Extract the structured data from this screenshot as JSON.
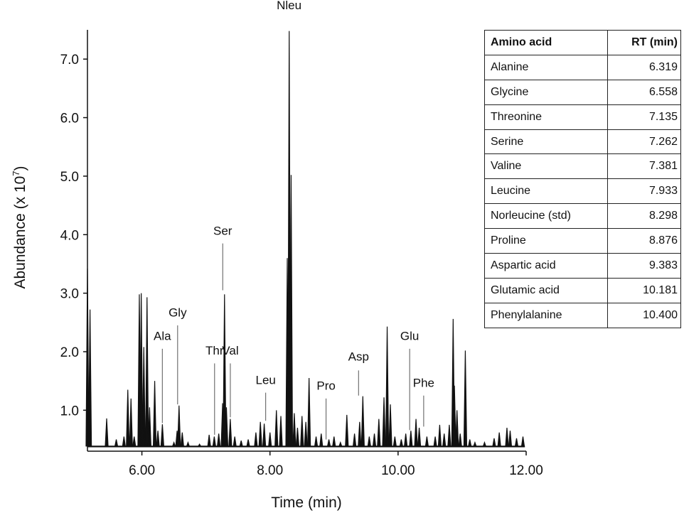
{
  "chart_data": {
    "type": "line",
    "xlabel": "Time  (min)",
    "ylabel": "Abundance  (x 10",
    "ylabel_sup": "7",
    "ylabel_close": ")",
    "xlim": [
      5.15,
      12.0
    ],
    "ylim": [
      0.3,
      7.5
    ],
    "xticks": [
      "6.00",
      "8.00",
      "10.00",
      "12.00"
    ],
    "yticks": [
      "1.0",
      "2.0",
      "3.0",
      "4.0",
      "5.0",
      "6.0",
      "7.0"
    ],
    "baseline": 0.38,
    "peaks": [
      [
        5.15,
        3.42
      ],
      [
        5.19,
        2.72
      ],
      [
        5.45,
        0.86
      ],
      [
        5.6,
        0.5
      ],
      [
        5.72,
        0.55
      ],
      [
        5.78,
        1.35
      ],
      [
        5.83,
        1.2
      ],
      [
        5.88,
        0.55
      ],
      [
        5.96,
        2.98
      ],
      [
        5.99,
        3.0
      ],
      [
        6.03,
        2.08
      ],
      [
        6.08,
        2.93
      ],
      [
        6.12,
        1.05
      ],
      [
        6.2,
        1.5
      ],
      [
        6.25,
        0.65
      ],
      [
        6.32,
        0.76
      ],
      [
        6.5,
        0.45
      ],
      [
        6.55,
        0.65
      ],
      [
        6.58,
        1.08
      ],
      [
        6.63,
        0.62
      ],
      [
        6.72,
        0.45
      ],
      [
        6.9,
        0.42
      ],
      [
        7.05,
        0.58
      ],
      [
        7.13,
        0.55
      ],
      [
        7.2,
        0.6
      ],
      [
        7.26,
        1.12
      ],
      [
        7.29,
        2.98
      ],
      [
        7.32,
        1.05
      ],
      [
        7.38,
        0.85
      ],
      [
        7.45,
        0.55
      ],
      [
        7.55,
        0.48
      ],
      [
        7.66,
        0.5
      ],
      [
        7.78,
        0.62
      ],
      [
        7.85,
        0.8
      ],
      [
        7.91,
        0.77
      ],
      [
        8.0,
        0.62
      ],
      [
        8.1,
        1.0
      ],
      [
        8.17,
        0.9
      ],
      [
        8.27,
        3.6
      ],
      [
        8.3,
        7.48
      ],
      [
        8.33,
        5.02
      ],
      [
        8.38,
        0.95
      ],
      [
        8.43,
        0.7
      ],
      [
        8.5,
        0.9
      ],
      [
        8.56,
        0.8
      ],
      [
        8.61,
        1.55
      ],
      [
        8.72,
        0.55
      ],
      [
        8.8,
        0.6
      ],
      [
        8.92,
        0.5
      ],
      [
        9.0,
        0.55
      ],
      [
        9.1,
        0.45
      ],
      [
        9.2,
        0.92
      ],
      [
        9.32,
        0.6
      ],
      [
        9.4,
        0.8
      ],
      [
        9.45,
        1.24
      ],
      [
        9.55,
        0.55
      ],
      [
        9.63,
        0.6
      ],
      [
        9.7,
        0.85
      ],
      [
        9.78,
        1.22
      ],
      [
        9.83,
        2.43
      ],
      [
        9.88,
        1.1
      ],
      [
        9.95,
        0.55
      ],
      [
        10.05,
        0.5
      ],
      [
        10.12,
        0.6
      ],
      [
        10.2,
        0.65
      ],
      [
        10.28,
        0.85
      ],
      [
        10.33,
        0.7
      ],
      [
        10.45,
        0.55
      ],
      [
        10.58,
        0.55
      ],
      [
        10.65,
        0.75
      ],
      [
        10.72,
        0.6
      ],
      [
        10.8,
        0.75
      ],
      [
        10.86,
        2.56
      ],
      [
        10.88,
        1.42
      ],
      [
        10.92,
        1.0
      ],
      [
        10.97,
        0.6
      ],
      [
        11.05,
        2.02
      ],
      [
        11.12,
        0.5
      ],
      [
        11.2,
        0.45
      ],
      [
        11.35,
        0.45
      ],
      [
        11.5,
        0.52
      ],
      [
        11.58,
        0.62
      ],
      [
        11.7,
        0.7
      ],
      [
        11.75,
        0.65
      ],
      [
        11.85,
        0.52
      ],
      [
        11.95,
        0.55
      ]
    ],
    "annotations": [
      {
        "label": "Nleu",
        "x": 8.298,
        "label_y": 7.85,
        "line": false
      },
      {
        "label": "Ser",
        "x": 7.262,
        "label_y": 4.0,
        "line_top": 3.85,
        "line_bottom": 3.05
      },
      {
        "label": "Gly",
        "x": 6.558,
        "label_y": 2.6,
        "line_top": 2.45,
        "line_bottom": 1.1
      },
      {
        "label": "Ala",
        "x": 6.319,
        "label_y": 2.2,
        "line_top": 2.05,
        "line_bottom": 0.78
      },
      {
        "label": "Thr",
        "x": 7.135,
        "label_y": 1.95,
        "line_top": 1.8,
        "line_bottom": 0.58
      },
      {
        "label": "Val",
        "x": 7.381,
        "label_y": 1.95,
        "line_top": 1.8,
        "line_bottom": 0.88
      },
      {
        "label": "Leu",
        "x": 7.933,
        "label_y": 1.45,
        "line_top": 1.3,
        "line_bottom": 0.82
      },
      {
        "label": "Pro",
        "x": 8.876,
        "label_y": 1.35,
        "line_top": 1.2,
        "line_bottom": 0.5
      },
      {
        "label": "Asp",
        "x": 9.383,
        "label_y": 1.85,
        "line_top": 1.68,
        "line_bottom": 1.25
      },
      {
        "label": "Glu",
        "x": 10.181,
        "label_y": 2.2,
        "line_top": 2.05,
        "line_bottom": 0.66
      },
      {
        "label": "Phe",
        "x": 10.4,
        "label_y": 1.4,
        "line_top": 1.25,
        "line_bottom": 0.72
      }
    ]
  },
  "table": {
    "header_name": "Amino acid",
    "header_rt": "RT (min)",
    "rows": [
      {
        "name": "Alanine",
        "rt": "6.319"
      },
      {
        "name": "Glycine",
        "rt": "6.558"
      },
      {
        "name": "Threonine",
        "rt": "7.135"
      },
      {
        "name": "Serine",
        "rt": "7.262"
      },
      {
        "name": "Valine",
        "rt": "7.381"
      },
      {
        "name": "Leucine",
        "rt": "7.933"
      },
      {
        "name": "Norleucine (std)",
        "rt": "8.298"
      },
      {
        "name": "Proline",
        "rt": "8.876"
      },
      {
        "name": "Aspartic acid",
        "rt": "9.383"
      },
      {
        "name": "Glutamic acid",
        "rt": "10.181"
      },
      {
        "name": "Phenylalanine",
        "rt": "10.400"
      }
    ]
  }
}
